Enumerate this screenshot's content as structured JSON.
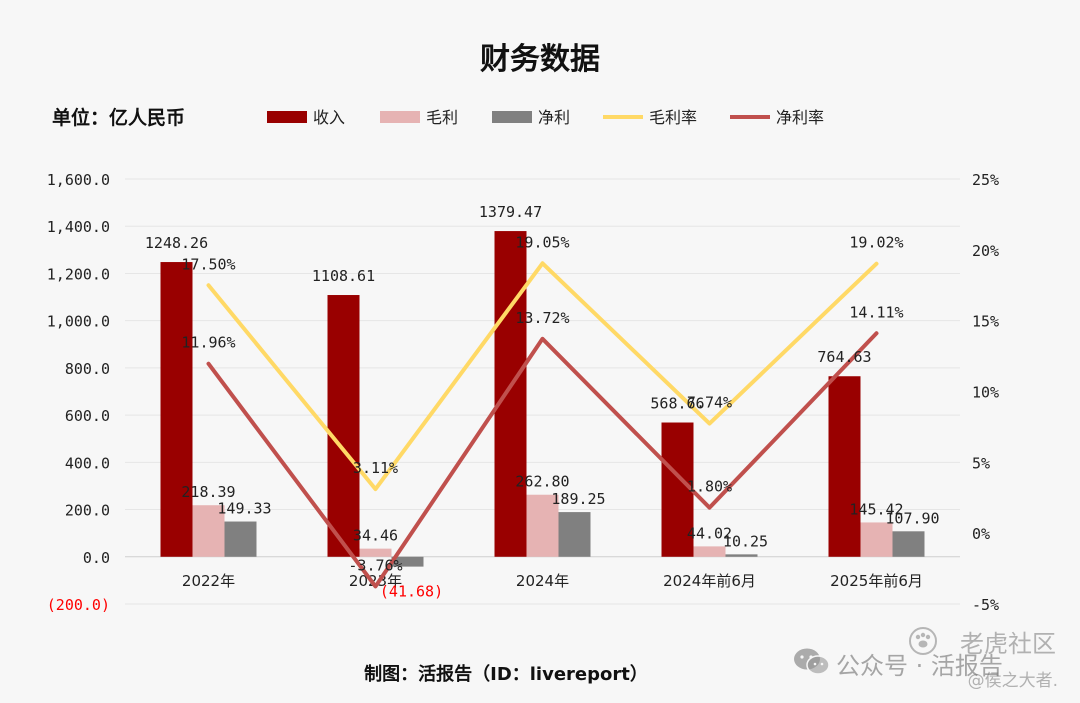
{
  "chart_data": {
    "type": "bar",
    "title": "财务数据",
    "unit_label": "单位：亿人民币",
    "credit": "制图：活报告（ID：livereport）",
    "categories": [
      "2022年",
      "2023年",
      "2024年",
      "2024年前6月",
      "2025年前6月"
    ],
    "bar_series": [
      {
        "name": "收入",
        "color": "#990000",
        "values": [
          1248.26,
          1108.61,
          1379.47,
          568.66,
          764.63
        ],
        "labels": [
          "1248.26",
          "1108.61",
          "1379.47",
          "568.66",
          "764.63"
        ]
      },
      {
        "name": "毛利",
        "color": "#e6b3b3",
        "values": [
          218.39,
          34.46,
          262.8,
          44.02,
          145.42
        ],
        "labels": [
          "218.39",
          "34.46",
          "262.80",
          "44.02",
          "145.42"
        ]
      },
      {
        "name": "净利",
        "color": "#808080",
        "values": [
          149.33,
          -41.68,
          189.25,
          10.25,
          107.9
        ],
        "labels": [
          "149.33",
          "(41.68)",
          "189.25",
          "10.25",
          "107.90"
        ]
      }
    ],
    "line_series": [
      {
        "name": "毛利率",
        "color": "#ffd966",
        "values": [
          17.5,
          3.11,
          19.05,
          7.74,
          19.02
        ],
        "labels": [
          "17.50%",
          "3.11%",
          "19.05%",
          "7.74%",
          "19.02%"
        ]
      },
      {
        "name": "净利率",
        "color": "#c0504d",
        "values": [
          11.96,
          -3.76,
          13.72,
          1.8,
          14.11
        ],
        "labels": [
          "11.96%",
          "-3.76%",
          "13.72%",
          "1.80%",
          "14.11%"
        ]
      }
    ],
    "y_left": {
      "min": -200,
      "max": 1600,
      "step": 200,
      "ticks": [
        "(200.0)",
        "0.0",
        "200.0",
        "400.0",
        "600.0",
        "800.0",
        "1,000.0",
        "1,200.0",
        "1,400.0",
        "1,600.0"
      ]
    },
    "y_right": {
      "min": -5,
      "max": 25,
      "step": 5,
      "ticks": [
        "-5%",
        "0%",
        "5%",
        "10%",
        "15%",
        "20%",
        "25%"
      ]
    },
    "negative_color": "#ff0000",
    "grid": true,
    "legend_position": "top"
  },
  "watermark": {
    "line1": "老虎社区",
    "line2": "公众号 · 活报告",
    "line3": "@侯之大者."
  }
}
